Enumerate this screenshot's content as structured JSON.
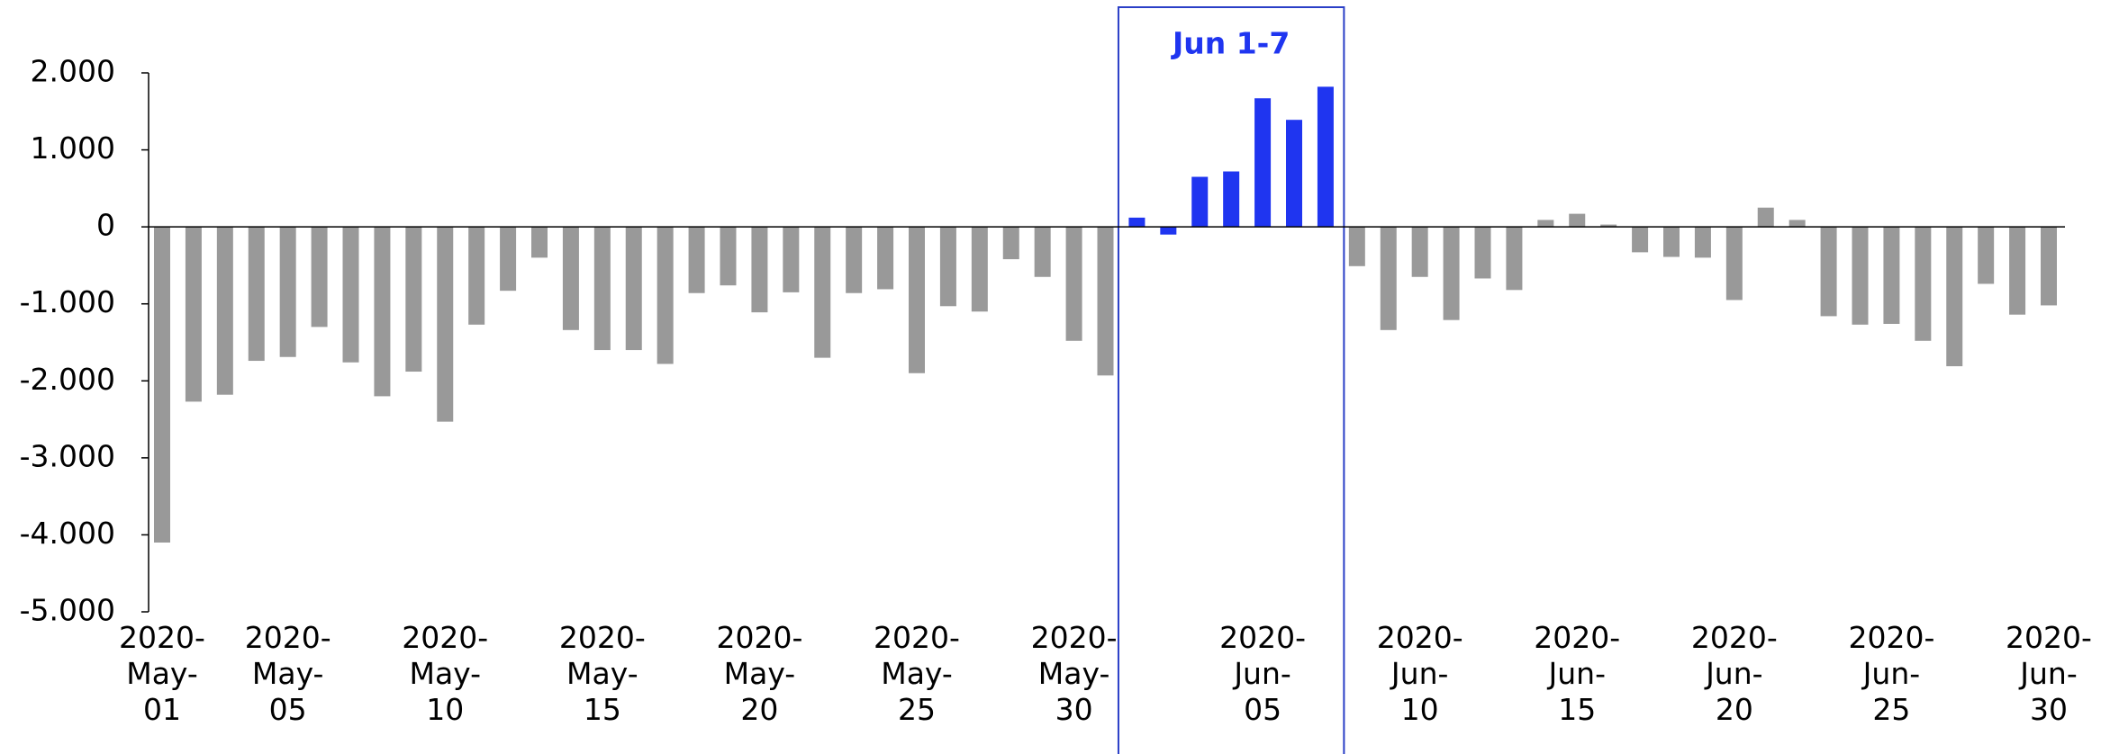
{
  "chart_data": {
    "type": "bar",
    "categories": [
      "2020-May-01",
      null,
      null,
      null,
      "2020-May-05",
      null,
      null,
      null,
      null,
      "2020-May-10",
      null,
      null,
      null,
      null,
      "2020-May-15",
      null,
      null,
      null,
      null,
      "2020-May-20",
      null,
      null,
      null,
      null,
      "2020-May-25",
      null,
      null,
      null,
      null,
      "2020-May-30",
      null,
      null,
      null,
      null,
      null,
      "2020-Jun-05",
      null,
      null,
      null,
      null,
      "2020-Jun-10",
      null,
      null,
      null,
      null,
      "2020-Jun-15",
      null,
      null,
      null,
      null,
      "2020-Jun-20",
      null,
      null,
      null,
      null,
      "2020-Jun-25",
      null,
      null,
      null,
      null,
      "2020-Jun-30"
    ],
    "values": [
      -4100,
      -2270,
      -2180,
      -1740,
      -1690,
      -1300,
      -1760,
      -2200,
      -1880,
      -2530,
      -1270,
      -830,
      -400,
      -1340,
      -1600,
      -1600,
      -1780,
      -860,
      -760,
      -1110,
      -850,
      -1700,
      -860,
      -810,
      -1900,
      -1030,
      -1100,
      -420,
      -650,
      -1480,
      -1930,
      120,
      -100,
      650,
      720,
      1670,
      1390,
      1820,
      -510,
      -1340,
      -650,
      -1210,
      -670,
      -820,
      90,
      170,
      30,
      -330,
      -390,
      -400,
      -950,
      250,
      90,
      -1160,
      -1270,
      -1260,
      -1480,
      -1810,
      -740,
      -1140,
      -1020
    ],
    "colors": [
      "#999999",
      "#999999",
      "#999999",
      "#999999",
      "#999999",
      "#999999",
      "#999999",
      "#999999",
      "#999999",
      "#999999",
      "#999999",
      "#999999",
      "#999999",
      "#999999",
      "#999999",
      "#999999",
      "#999999",
      "#999999",
      "#999999",
      "#999999",
      "#999999",
      "#999999",
      "#999999",
      "#999999",
      "#999999",
      "#999999",
      "#999999",
      "#999999",
      "#999999",
      "#999999",
      "#999999",
      "#1f35f0",
      "#1f35f0",
      "#1f35f0",
      "#1f35f0",
      "#1f35f0",
      "#1f35f0",
      "#1f35f0",
      "#999999",
      "#999999",
      "#999999",
      "#999999",
      "#999999",
      "#999999",
      "#999999",
      "#999999",
      "#999999",
      "#999999",
      "#999999",
      "#999999",
      "#999999",
      "#999999",
      "#999999",
      "#999999",
      "#999999",
      "#999999",
      "#999999",
      "#999999",
      "#999999",
      "#999999",
      "#999999"
    ],
    "annotation": {
      "text": "Jun 1-7",
      "color": "#1f35f0"
    },
    "ylim": [
      -5000,
      2000
    ],
    "yticks": [
      {
        "value": -5000,
        "label": "-5.000"
      },
      {
        "value": -4000,
        "label": "-4.000"
      },
      {
        "value": -3000,
        "label": "-3.000"
      },
      {
        "value": -2000,
        "label": "-2.000"
      },
      {
        "value": -1000,
        "label": "-1.000"
      },
      0,
      {
        "value": 1000,
        "label": "1.000"
      },
      {
        "value": 2000,
        "label": "2.000"
      }
    ],
    "grid": false
  }
}
